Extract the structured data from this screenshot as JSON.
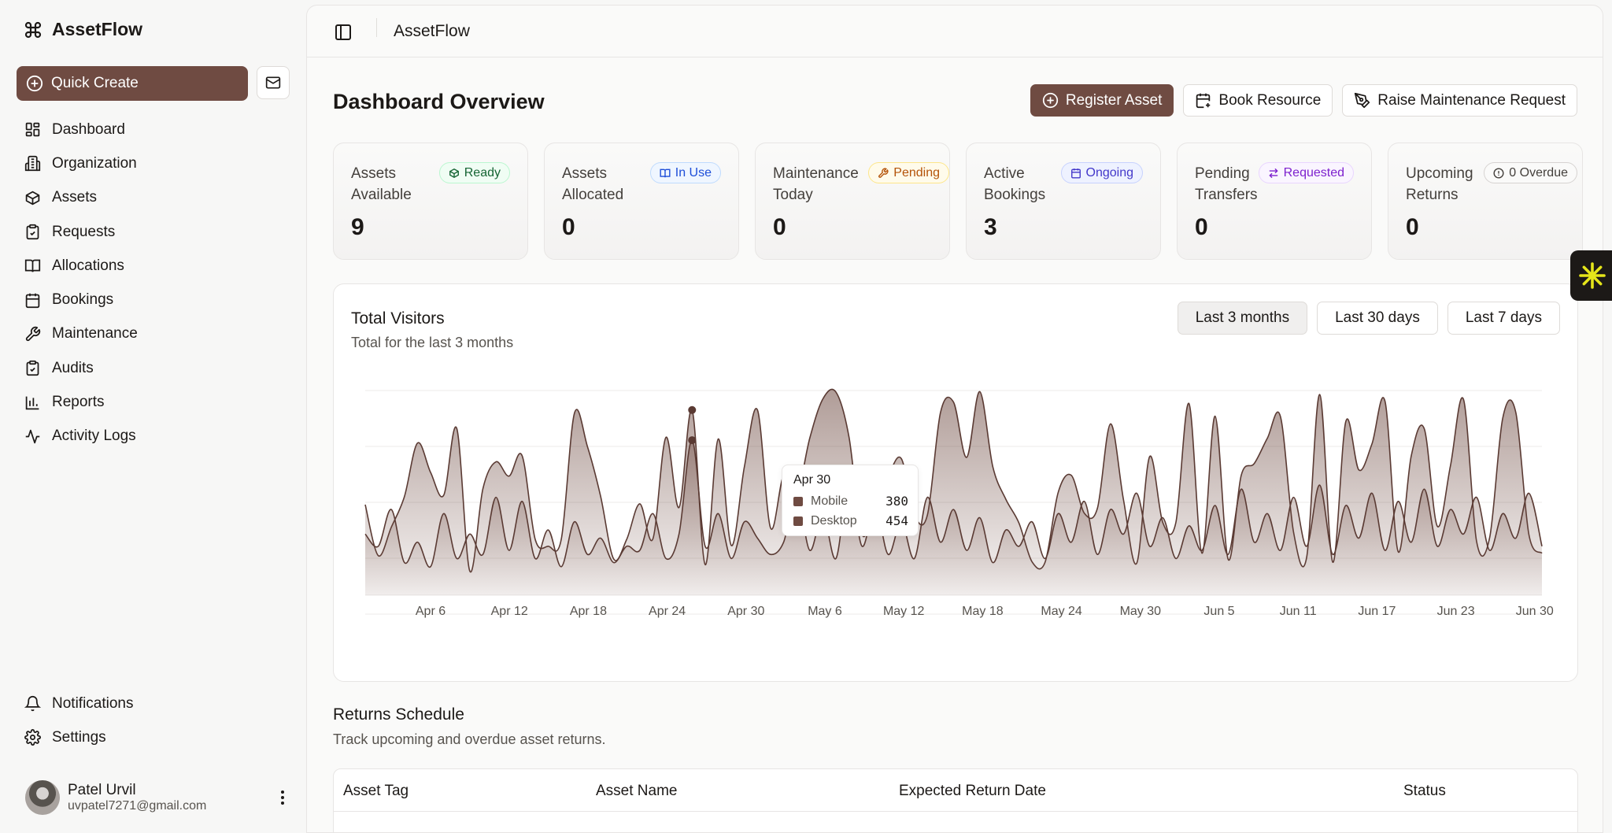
{
  "app": {
    "name": "AssetFlow"
  },
  "sidebar": {
    "quick_create": "Quick Create",
    "items": [
      {
        "label": "Dashboard",
        "icon": "dashboard-icon"
      },
      {
        "label": "Organization",
        "icon": "building-icon"
      },
      {
        "label": "Assets",
        "icon": "box-icon"
      },
      {
        "label": "Requests",
        "icon": "clipboard-icon"
      },
      {
        "label": "Allocations",
        "icon": "book-open-icon"
      },
      {
        "label": "Bookings",
        "icon": "calendar-icon"
      },
      {
        "label": "Maintenance",
        "icon": "wrench-icon"
      },
      {
        "label": "Audits",
        "icon": "clipboard-check-icon"
      },
      {
        "label": "Reports",
        "icon": "bar-chart-icon"
      },
      {
        "label": "Activity Logs",
        "icon": "activity-icon"
      }
    ],
    "bottom_items": [
      {
        "label": "Notifications",
        "icon": "bell-icon"
      },
      {
        "label": "Settings",
        "icon": "gear-icon"
      }
    ],
    "user": {
      "name": "Patel Urvil",
      "email": "uvpatel7271@gmail.com"
    }
  },
  "topbar": {
    "title": "AssetFlow"
  },
  "page": {
    "title": "Dashboard Overview",
    "actions": {
      "register": "Register Asset",
      "book": "Book Resource",
      "maintenance": "Raise Maintenance Request"
    }
  },
  "stats": [
    {
      "label": "Assets Available",
      "value": "9",
      "badge": "Ready",
      "badge_color": "#166534"
    },
    {
      "label": "Assets Allocated",
      "value": "0",
      "badge": "In Use",
      "badge_color": "#1d4ed8"
    },
    {
      "label": "Maintenance Today",
      "value": "0",
      "badge": "Pending",
      "badge_color": "#b45309"
    },
    {
      "label": "Active Bookings",
      "value": "3",
      "badge": "Ongoing",
      "badge_color": "#4338ca"
    },
    {
      "label": "Pending Transfers",
      "value": "0",
      "badge": "Requested",
      "badge_color": "#7e22ce"
    },
    {
      "label": "Upcoming Returns",
      "value": "0",
      "badge": "0 Overdue",
      "badge_color": "#44403c"
    }
  ],
  "chart": {
    "title": "Total Visitors",
    "subtitle": "Total for the last 3 months",
    "ranges": [
      "Last 3 months",
      "Last 30 days",
      "Last 7 days"
    ],
    "active_range": "Last 3 months",
    "tooltip": {
      "date": "Apr 30",
      "mobile_label": "Mobile",
      "mobile_value": "380",
      "desktop_label": "Desktop",
      "desktop_value": "454"
    }
  },
  "chart_data": {
    "type": "area",
    "title": "Total Visitors",
    "x_ticks": [
      "Apr 6",
      "Apr 12",
      "Apr 18",
      "Apr 24",
      "Apr 30",
      "May 6",
      "May 12",
      "May 18",
      "May 24",
      "May 30",
      "Jun 5",
      "Jun 11",
      "Jun 17",
      "Jun 23",
      "Jun 30"
    ],
    "series": [
      {
        "name": "Mobile",
        "values": [
          150,
          120,
          210,
          80,
          130,
          70,
          200,
          90,
          150,
          100,
          240,
          110,
          230,
          90,
          160,
          70,
          180,
          100,
          140,
          80,
          120,
          110,
          200,
          90,
          150,
          380,
          120,
          200,
          90,
          180,
          140,
          100,
          130,
          250,
          110,
          200,
          90,
          280,
          120,
          220,
          100,
          180,
          90,
          240,
          130,
          210,
          110,
          190,
          80,
          160,
          120,
          180,
          90,
          200,
          130,
          230,
          100,
          210,
          150,
          250,
          120,
          190,
          90,
          170,
          110,
          220,
          100,
          260,
          130,
          200,
          110,
          240,
          120,
          270,
          100,
          220,
          140,
          250,
          110,
          230,
          130,
          260,
          120,
          210,
          150,
          240,
          110,
          200,
          140,
          250,
          120
        ]
      },
      {
        "name": "Desktop",
        "values": [
          222,
          97,
          167,
          242,
          373,
          301,
          245,
          409,
          59,
          261,
          327,
          292,
          342,
          137,
          120,
          138,
          446,
          364,
          243,
          89,
          137,
          224,
          138,
          387,
          215,
          454,
          75,
          383,
          122,
          315,
          454,
          165,
          293,
          247,
          385,
          481,
          498,
          388,
          149,
          227,
          293,
          335,
          197,
          197,
          448,
          473,
          338,
          499,
          315,
          235,
          177,
          82,
          81,
          252,
          294,
          201,
          213,
          420,
          233,
          78,
          340,
          178,
          178,
          470,
          103,
          439,
          88,
          294,
          323,
          385,
          438,
          155,
          92,
          492,
          81,
          426,
          307,
          371,
          475,
          107,
          341,
          408,
          169,
          317,
          480,
          132,
          141,
          434,
          448,
          149,
          103
        ]
      }
    ],
    "tooltip_date": "Apr 30",
    "grid": true,
    "legend": "none"
  },
  "returns": {
    "title": "Returns Schedule",
    "subtitle": "Track upcoming and overdue asset returns.",
    "columns": [
      "Asset Tag",
      "Asset Name",
      "Expected Return Date",
      "Status"
    ]
  },
  "colors": {
    "accent": "#6f4b42",
    "background": "#f7f7f6"
  }
}
